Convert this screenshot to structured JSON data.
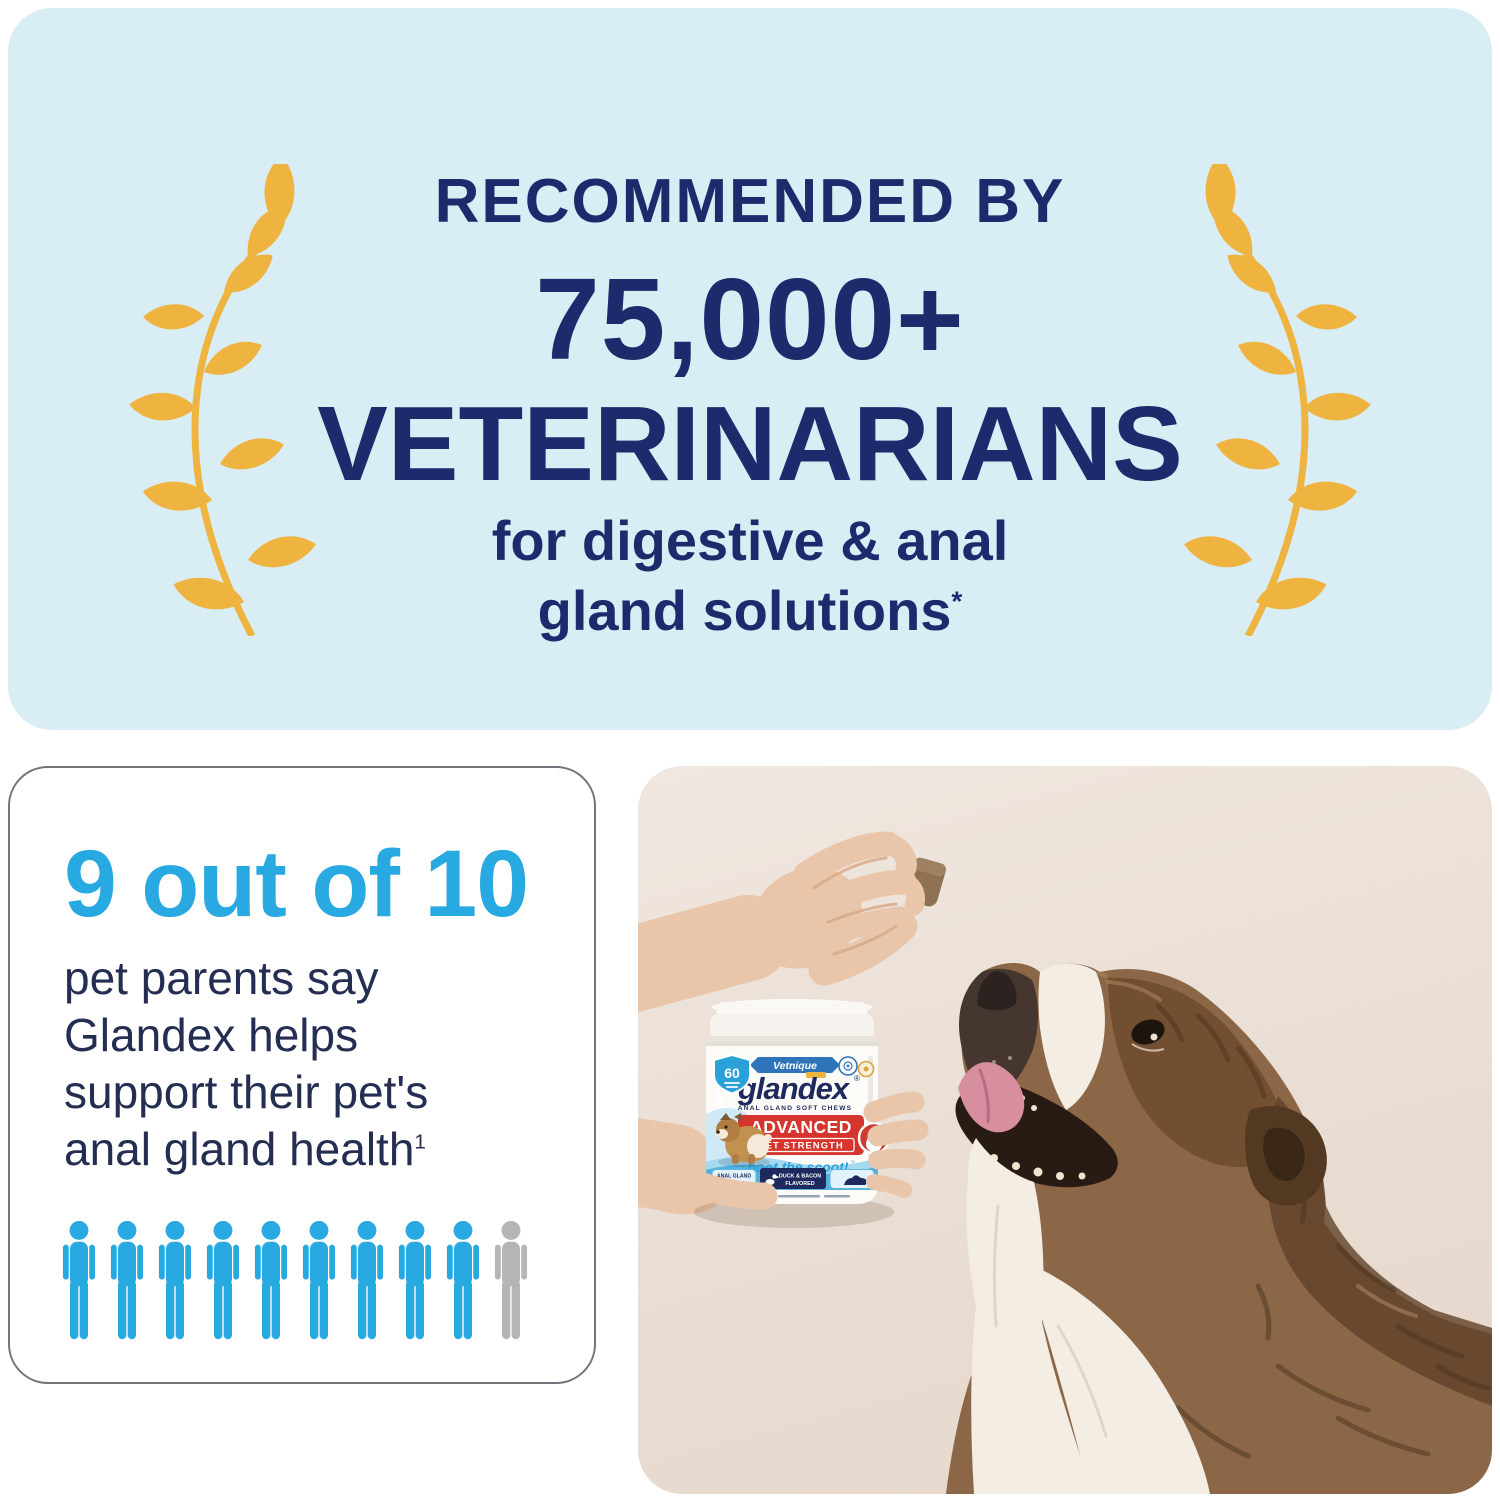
{
  "banner": {
    "line1": "RECOMMENDED BY",
    "line2": "75,000+",
    "line3": "VETERINARIANS",
    "subtitle_line1": "for digestive & anal",
    "subtitle_line2": "gland solutions",
    "footnote_mark": "*"
  },
  "stat_card": {
    "headline": "9 out of 10",
    "lines": [
      "pet parents say",
      "Glandex helps",
      "support their pet's",
      "anal gland health"
    ],
    "footnote_mark": "1",
    "people_filled": 9,
    "people_total": 10
  },
  "photo": {
    "jar": {
      "brand": "Vetnique",
      "product": "glandex",
      "reg_mark": "®",
      "subtitle": "ANAL GLAND SOFT CHEWS",
      "line1": "ADVANCED",
      "line2": "VET STRENGTH",
      "tagline": "boot the scoot!",
      "tm_mark": "™",
      "count_badge": "60",
      "badge_left": [
        "ANAL GLAND",
        "HEALTH"
      ],
      "badge_center": [
        "DUCK & BACON",
        "FLAVORED"
      ]
    }
  },
  "colors": {
    "accent_blue": "#29a9e1",
    "navy": "#1b2b6b",
    "text_navy": "#242e52",
    "gold": "#efb440",
    "banner_bg": "#d9edf5",
    "person_gray": "#b5b5b5",
    "card_border": "#70757c",
    "label_red": "#d5352d",
    "label_navy": "#1e2a5e",
    "label_blue": "#2ba1d9",
    "skin": "#e9c6aa",
    "photo_bg_top": "#efe7e0",
    "photo_bg_bottom": "#e5d6c9",
    "dog_brown": "#8b6747",
    "dog_white": "#f3ede4"
  }
}
